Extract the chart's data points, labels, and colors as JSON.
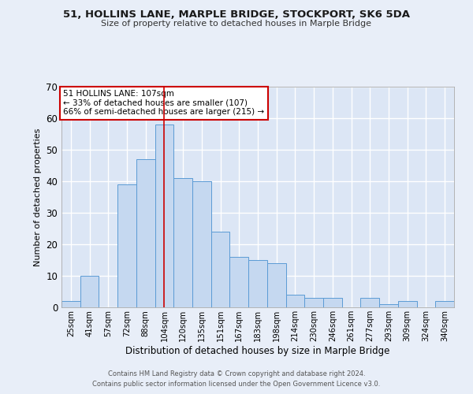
{
  "title": "51, HOLLINS LANE, MARPLE BRIDGE, STOCKPORT, SK6 5DA",
  "subtitle": "Size of property relative to detached houses in Marple Bridge",
  "xlabel": "Distribution of detached houses by size in Marple Bridge",
  "ylabel": "Number of detached properties",
  "categories": [
    "25sqm",
    "41sqm",
    "57sqm",
    "72sqm",
    "88sqm",
    "104sqm",
    "120sqm",
    "135sqm",
    "151sqm",
    "167sqm",
    "183sqm",
    "198sqm",
    "214sqm",
    "230sqm",
    "246sqm",
    "261sqm",
    "277sqm",
    "293sqm",
    "309sqm",
    "324sqm",
    "340sqm"
  ],
  "values": [
    2,
    10,
    0,
    39,
    47,
    58,
    41,
    40,
    24,
    16,
    15,
    14,
    4,
    3,
    3,
    0,
    3,
    1,
    2,
    0,
    2
  ],
  "bar_color": "#c5d8f0",
  "bar_edge_color": "#5b9bd5",
  "fig_bg_color": "#e8eef8",
  "axes_bg_color": "#dce6f5",
  "grid_color": "#ffffff",
  "vline_x_index": 5,
  "vline_color": "#cc0000",
  "annotation_text": "51 HOLLINS LANE: 107sqm\n← 33% of detached houses are smaller (107)\n66% of semi-detached houses are larger (215) →",
  "annotation_box_color": "#cc0000",
  "ylim": [
    0,
    70
  ],
  "yticks": [
    0,
    10,
    20,
    30,
    40,
    50,
    60,
    70
  ],
  "footer_line1": "Contains HM Land Registry data © Crown copyright and database right 2024.",
  "footer_line2": "Contains public sector information licensed under the Open Government Licence v3.0."
}
